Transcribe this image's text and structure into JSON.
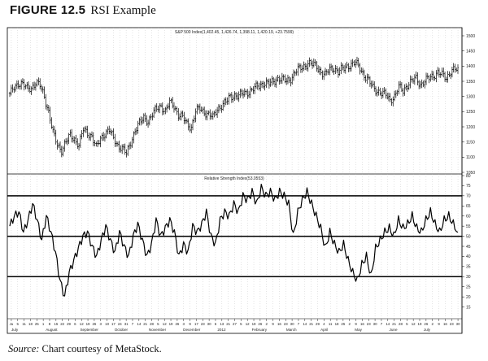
{
  "figure": {
    "label": "FIGURE 12.5",
    "title": "RSI Example",
    "source_label": "Source:",
    "source_text": " Chart courtesy of MetaStock."
  },
  "chart_data": [
    {
      "type": "candlestick",
      "title": "S&P 500 Index(1,402.45, 1,426.74, 1,398.11, 1,420.19, +23.7599)",
      "ylim": [
        1050,
        1500
      ],
      "yticks": [
        "1500",
        "1450",
        "1400",
        "1350",
        "1300",
        "1250",
        "1200",
        "1150",
        "1100",
        "1050"
      ],
      "grid": true,
      "series": [
        {
          "values": [
            1305,
            1330,
            1345,
            1340,
            1325,
            1330,
            1345,
            1335,
            1300,
            1250,
            1180,
            1140,
            1125,
            1150,
            1170,
            1160,
            1140,
            1190,
            1180,
            1170,
            1130,
            1160,
            1180,
            1190,
            1160,
            1140,
            1130,
            1110,
            1150,
            1190,
            1210,
            1230,
            1220,
            1240,
            1260,
            1270,
            1250,
            1280,
            1270,
            1240,
            1230,
            1210,
            1200,
            1250,
            1260,
            1250,
            1240,
            1230,
            1260,
            1270,
            1280,
            1300,
            1305,
            1300,
            1310,
            1315,
            1320,
            1330,
            1340,
            1345,
            1340,
            1350,
            1360,
            1355,
            1350,
            1360,
            1380,
            1390,
            1400,
            1410,
            1405,
            1400,
            1380,
            1370,
            1390,
            1395,
            1380,
            1390,
            1400,
            1405,
            1410,
            1395,
            1370,
            1350,
            1330,
            1320,
            1310,
            1305,
            1290,
            1300,
            1330,
            1320,
            1340,
            1350,
            1360,
            1340,
            1350,
            1360,
            1370,
            1380,
            1370,
            1360,
            1385,
            1390,
            1380
          ]
        }
      ],
      "x_labels": [
        "Ju",
        "5",
        "11",
        "18",
        "25",
        "1",
        "8",
        "15",
        "22",
        "29",
        "6",
        "12",
        "19",
        "26",
        "3",
        "10",
        "17",
        "24",
        "31",
        "7",
        "14",
        "21",
        "28",
        "5",
        "12",
        "19",
        "26",
        "3",
        "9",
        "17",
        "23",
        "30",
        "6",
        "13",
        "21",
        "27",
        "5",
        "12",
        "19",
        "26",
        "2",
        "9",
        "16",
        "23",
        "30",
        "7",
        "14",
        "21",
        "29",
        "4",
        "11",
        "18",
        "25",
        "2",
        "9",
        "16",
        "23",
        "30",
        "7",
        "14",
        "21",
        "28",
        "5",
        "12",
        "19",
        "26",
        "2",
        "9",
        "16",
        "23",
        "30"
      ],
      "month_labels": [
        "July",
        "August",
        "September",
        "October",
        "November",
        "December",
        "2012",
        "February",
        "March",
        "April",
        "May",
        "June",
        "July"
      ]
    },
    {
      "type": "line",
      "title": "Relative Strength Index(53.0553)",
      "ylim": [
        10,
        80
      ],
      "yticks": [
        "80",
        "75",
        "70",
        "65",
        "60",
        "55",
        "50",
        "45",
        "40",
        "35",
        "30",
        "25",
        "20",
        "15"
      ],
      "reference_lines": [
        70,
        50,
        30
      ],
      "grid": true,
      "series": [
        {
          "values": [
            55,
            60,
            62,
            52,
            58,
            66,
            58,
            48,
            60,
            52,
            42,
            28,
            20,
            32,
            38,
            44,
            50,
            52,
            45,
            40,
            48,
            55,
            48,
            42,
            52,
            45,
            40,
            50,
            56,
            48,
            40,
            46,
            58,
            50,
            54,
            58,
            52,
            40,
            46,
            42,
            55,
            52,
            56,
            62,
            50,
            46,
            58,
            62,
            60,
            66,
            62,
            70,
            68,
            72,
            66,
            74,
            70,
            72,
            68,
            72,
            70,
            66,
            50,
            62,
            68,
            72,
            66,
            60,
            54,
            44,
            52,
            46,
            42,
            46,
            38,
            32,
            28,
            36,
            40,
            30,
            44,
            48,
            52,
            54,
            50,
            58,
            54,
            56,
            60,
            54,
            52,
            58,
            62,
            56,
            52,
            58,
            60,
            56,
            52
          ]
        }
      ]
    }
  ]
}
